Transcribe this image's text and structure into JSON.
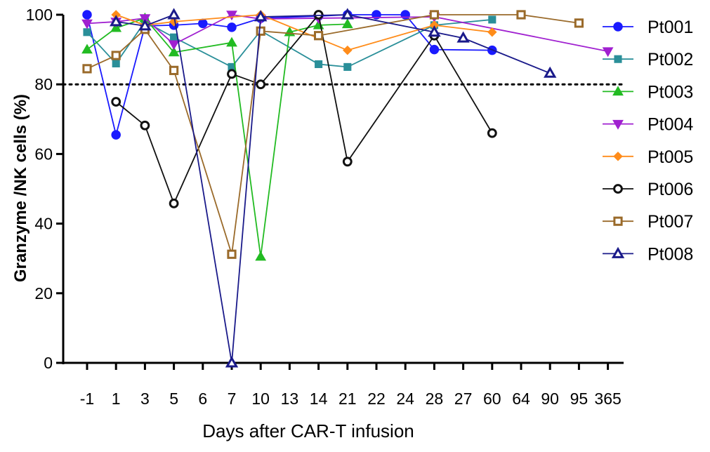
{
  "chart_data": {
    "type": "line",
    "xlabel": "Days after CAR-T infusion",
    "ylabel": "Granzyme /NK cells (%)",
    "categories": [
      "-1",
      "1",
      "3",
      "5",
      "6",
      "7",
      "10",
      "13",
      "14",
      "21",
      "22",
      "24",
      "28",
      "27",
      "60",
      "64",
      "90",
      "95",
      "365"
    ],
    "ylim": [
      0,
      100
    ],
    "yticks": [
      0,
      20,
      40,
      60,
      80,
      100
    ],
    "reference_line": 80,
    "legend_position": "right",
    "series": [
      {
        "name": "Pt001",
        "color": "#1a1aff",
        "marker": "circle-filled",
        "points": [
          [
            "-1",
            100
          ],
          [
            "1",
            65.5
          ],
          [
            "3",
            96.8
          ],
          [
            "5",
            97
          ],
          [
            "6",
            97.5
          ],
          [
            "7",
            96.4
          ],
          [
            "10",
            99
          ],
          [
            "14",
            99.6
          ],
          [
            "21",
            100
          ],
          [
            "22",
            100
          ],
          [
            "24",
            100
          ],
          [
            "28",
            90
          ],
          [
            "60",
            89.8
          ]
        ]
      },
      {
        "name": "Pt002",
        "color": "#2a8f99",
        "marker": "square-filled",
        "points": [
          [
            "-1",
            95
          ],
          [
            "1",
            86
          ],
          [
            "3",
            98
          ],
          [
            "5",
            93.5
          ],
          [
            "7",
            85
          ],
          [
            "10",
            95.4
          ],
          [
            "14",
            85.8
          ],
          [
            "21",
            85
          ],
          [
            "28",
            97
          ],
          [
            "60",
            98.6
          ]
        ]
      },
      {
        "name": "Pt003",
        "color": "#22bb22",
        "marker": "triangle-up-filled",
        "points": [
          [
            "-1",
            90
          ],
          [
            "1",
            96.2
          ],
          [
            "3",
            99
          ],
          [
            "5",
            89.2
          ],
          [
            "7",
            92
          ],
          [
            "10",
            30.5
          ],
          [
            "13",
            95
          ],
          [
            "14",
            97
          ],
          [
            "21",
            97.3
          ]
        ]
      },
      {
        "name": "Pt004",
        "color": "#a020d0",
        "marker": "triangle-down-filled",
        "points": [
          [
            "-1",
            97.5
          ],
          [
            "1",
            98
          ],
          [
            "3",
            99
          ],
          [
            "5",
            91.5
          ],
          [
            "7",
            100
          ],
          [
            "10",
            98.8
          ],
          [
            "14",
            99
          ],
          [
            "28",
            99.4
          ],
          [
            "365",
            89.5
          ]
        ]
      },
      {
        "name": "Pt005",
        "color": "#ff8c1a",
        "marker": "diamond-filled",
        "points": [
          [
            "1",
            100
          ],
          [
            "3",
            97
          ],
          [
            "5",
            98
          ],
          [
            "10",
            100
          ],
          [
            "21",
            89.8
          ],
          [
            "28",
            97
          ],
          [
            "60",
            95
          ]
        ]
      },
      {
        "name": "Pt006",
        "color": "#111111",
        "marker": "circle-open",
        "points": [
          [
            "1",
            75
          ],
          [
            "3",
            68.2
          ],
          [
            "5",
            45.8
          ],
          [
            "7",
            83
          ],
          [
            "10",
            80
          ],
          [
            "14",
            100
          ],
          [
            "21",
            57.8
          ],
          [
            "28",
            94
          ],
          [
            "60",
            66
          ]
        ]
      },
      {
        "name": "Pt007",
        "color": "#9a6a2a",
        "marker": "square-open",
        "points": [
          [
            "-1",
            84.5
          ],
          [
            "1",
            88.3
          ],
          [
            "3",
            95.8
          ],
          [
            "5",
            84
          ],
          [
            "7",
            31.2
          ],
          [
            "10",
            95.3
          ],
          [
            "14",
            94
          ],
          [
            "28",
            100
          ],
          [
            "64",
            100
          ],
          [
            "95",
            97.6
          ]
        ]
      },
      {
        "name": "Pt008",
        "color": "#1a1a8a",
        "marker": "triangle-up-open",
        "points": [
          [
            "1",
            98
          ],
          [
            "3",
            96.8
          ],
          [
            "5",
            100
          ],
          [
            "7",
            0
          ],
          [
            "10",
            99.4
          ],
          [
            "21",
            100
          ],
          [
            "28",
            95
          ],
          [
            "27",
            93.3
          ],
          [
            "90",
            83.2
          ]
        ]
      }
    ]
  }
}
